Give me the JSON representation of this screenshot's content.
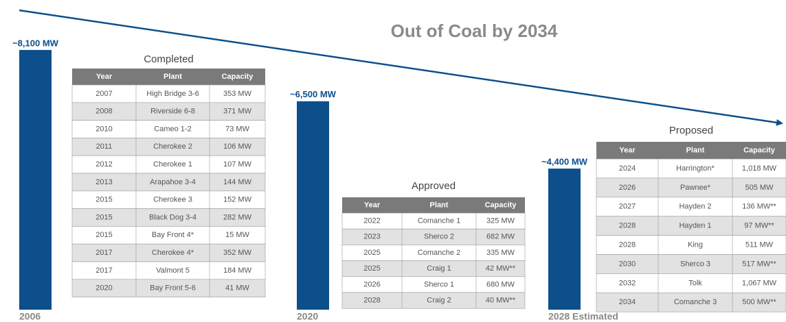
{
  "chart_data": {
    "type": "bar",
    "title": "Out of Coal by 2034",
    "categories": [
      "2006",
      "2020",
      "2028 Estimated"
    ],
    "values": [
      8100,
      6500,
      4400
    ],
    "value_labels": [
      "~8,100 MW",
      "~6,500 MW",
      "~4,400 MW"
    ],
    "color": "#0d4f8b"
  },
  "tables": [
    {
      "caption": "Completed",
      "columns": [
        "Year",
        "Plant",
        "Capacity"
      ],
      "rows": [
        [
          "2007",
          "High Bridge 3-6",
          "353 MW"
        ],
        [
          "2008",
          "Riverside 6-8",
          "371 MW"
        ],
        [
          "2010",
          "Cameo 1-2",
          "73 MW"
        ],
        [
          "2011",
          "Cherokee 2",
          "106 MW"
        ],
        [
          "2012",
          "Cherokee 1",
          "107 MW"
        ],
        [
          "2013",
          "Arapahoe 3-4",
          "144 MW"
        ],
        [
          "2015",
          "Cherokee 3",
          "152 MW"
        ],
        [
          "2015",
          "Black Dog 3-4",
          "282 MW"
        ],
        [
          "2015",
          "Bay Front 4*",
          "15 MW"
        ],
        [
          "2017",
          "Cherokee 4*",
          "352 MW"
        ],
        [
          "2017",
          "Valmont 5",
          "184 MW"
        ],
        [
          "2020",
          "Bay Front 5-6",
          "41 MW"
        ]
      ]
    },
    {
      "caption": "Approved",
      "columns": [
        "Year",
        "Plant",
        "Capacity"
      ],
      "rows": [
        [
          "2022",
          "Comanche 1",
          "325 MW"
        ],
        [
          "2023",
          "Sherco 2",
          "682 MW"
        ],
        [
          "2025",
          "Comanche 2",
          "335 MW"
        ],
        [
          "2025",
          "Craig 1",
          "42 MW**"
        ],
        [
          "2026",
          "Sherco 1",
          "680 MW"
        ],
        [
          "2028",
          "Craig 2",
          "40 MW**"
        ]
      ]
    },
    {
      "caption": "Proposed",
      "columns": [
        "Year",
        "Plant",
        "Capacity"
      ],
      "rows": [
        [
          "2024",
          "Harrington*",
          "1,018 MW"
        ],
        [
          "2026",
          "Pawnee*",
          "505 MW"
        ],
        [
          "2027",
          "Hayden 2",
          "136 MW**"
        ],
        [
          "2028",
          "Hayden 1",
          "97 MW**"
        ],
        [
          "2028",
          "King",
          "511 MW"
        ],
        [
          "2030",
          "Sherco 3",
          "517 MW**"
        ],
        [
          "2032",
          "Tolk",
          "1,067 MW"
        ],
        [
          "2034",
          "Comanche 3",
          "500 MW**"
        ]
      ]
    }
  ]
}
